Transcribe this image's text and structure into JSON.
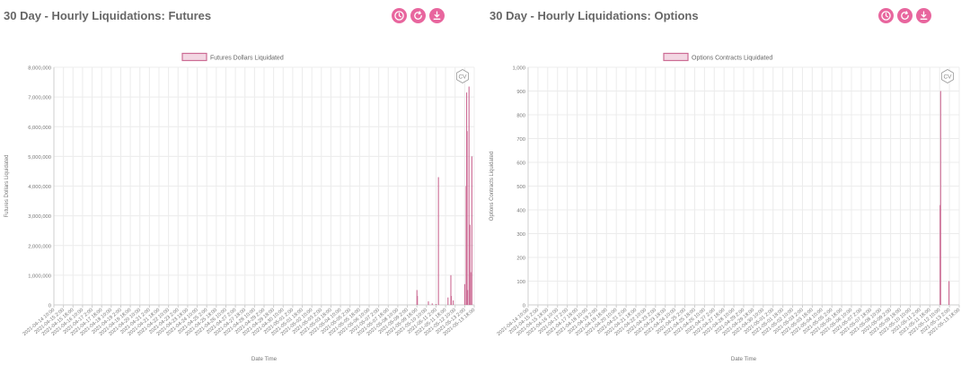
{
  "colors": {
    "accent": "#e8669e",
    "series_fill": "#f3d7e3",
    "series_line": "#cc6b94",
    "grid": "#ececec",
    "axis_text": "#777777",
    "title": "#666666"
  },
  "panels": [
    {
      "title": "30 Day - Hourly Liquidations: Futures",
      "buttons": [
        {
          "icon": "clock-icon"
        },
        {
          "icon": "refresh-icon"
        },
        {
          "icon": "download-icon"
        }
      ],
      "watermark": "CV"
    },
    {
      "title": "30 Day - Hourly Liquidations: Options",
      "buttons": [
        {
          "icon": "clock-icon"
        },
        {
          "icon": "refresh-icon"
        },
        {
          "icon": "download-icon"
        }
      ],
      "watermark": "CV"
    }
  ],
  "chart_data": [
    {
      "type": "bar",
      "title": "",
      "xlabel": "Date Time",
      "ylabel": "Futures Dollars Liquidated",
      "ylim": [
        0,
        8000000
      ],
      "yticks": [
        "0",
        "1,000,000",
        "2,000,000",
        "3,000,000",
        "4,000,000",
        "5,000,000",
        "6,000,000",
        "7,000,000",
        "8,000,000"
      ],
      "xticks": [
        "2021-04-14 10:00",
        "2021-04-15 2:00",
        "2021-04-15 18:00",
        "2021-04-16 10:00",
        "2021-04-17 2:00",
        "2021-04-17 18:00",
        "2021-04-18 10:00",
        "2021-04-19 2:00",
        "2021-04-19 18:00",
        "2021-04-20 10:00",
        "2021-04-21 2:00",
        "2021-04-21 18:00",
        "2021-04-22 10:00",
        "2021-04-23 2:00",
        "2021-04-23 18:00",
        "2021-04-24 10:00",
        "2021-04-25 2:00",
        "2021-04-25 18:00",
        "2021-04-26 10:00",
        "2021-04-27 2:00",
        "2021-04-27 18:00",
        "2021-04-28 10:00",
        "2021-04-29 2:00",
        "2021-04-29 18:00",
        "2021-04-30 10:00",
        "2021-05-01 2:00",
        "2021-05-01 18:00",
        "2021-05-02 10:00",
        "2021-05-03 2:00",
        "2021-05-03 18:00",
        "2021-05-04 10:00",
        "2021-05-05 2:00",
        "2021-05-05 18:00",
        "2021-05-06 10:00",
        "2021-05-07 2:00",
        "2021-05-07 18:00",
        "2021-05-08 10:00",
        "2021-05-09 2:00",
        "2021-05-09 18:00",
        "2021-05-10 10:00",
        "2021-05-11 2:00",
        "2021-05-11 18:00",
        "2021-05-12 10:00",
        "2021-05-13 2:00",
        "2021-05-13 18:00"
      ],
      "series": [
        {
          "name": "Futures Dollars Liquidated",
          "points": [
            {
              "x": 38.0,
              "y": 500000
            },
            {
              "x": 38.05,
              "y": 300000
            },
            {
              "x": 39.2,
              "y": 120000
            },
            {
              "x": 39.6,
              "y": 50000
            },
            {
              "x": 40.0,
              "y": 30000
            },
            {
              "x": 40.25,
              "y": 4300000
            },
            {
              "x": 41.25,
              "y": 250000
            },
            {
              "x": 41.55,
              "y": 1000000
            },
            {
              "x": 41.6,
              "y": 300000
            },
            {
              "x": 41.8,
              "y": 150000
            },
            {
              "x": 43.0,
              "y": 700000
            },
            {
              "x": 43.15,
              "y": 4000000
            },
            {
              "x": 43.2,
              "y": 7150000
            },
            {
              "x": 43.25,
              "y": 5850000
            },
            {
              "x": 43.3,
              "y": 500000
            },
            {
              "x": 43.45,
              "y": 7350000
            },
            {
              "x": 43.55,
              "y": 2700000
            },
            {
              "x": 43.62,
              "y": 1100000
            },
            {
              "x": 43.75,
              "y": 5000000
            },
            {
              "x": 44.3,
              "y": 50000
            },
            {
              "x": 44.6,
              "y": 120000
            }
          ]
        }
      ]
    },
    {
      "type": "bar",
      "title": "",
      "xlabel": "Date Time",
      "ylabel": "Options Contracts Liquidated",
      "ylim": [
        0,
        1000
      ],
      "yticks": [
        "0",
        "100",
        "200",
        "300",
        "400",
        "500",
        "600",
        "700",
        "800",
        "900",
        "1,000"
      ],
      "xticks": [
        "2021-04-14 10:00",
        "2021-04-15 2:00",
        "2021-04-15 18:00",
        "2021-04-16 10:00",
        "2021-04-17 2:00",
        "2021-04-17 18:00",
        "2021-04-18 10:00",
        "2021-04-19 2:00",
        "2021-04-19 18:00",
        "2021-04-20 10:00",
        "2021-04-21 2:00",
        "2021-04-21 18:00",
        "2021-04-22 10:00",
        "2021-04-23 2:00",
        "2021-04-23 18:00",
        "2021-04-24 10:00",
        "2021-04-25 2:00",
        "2021-04-25 18:00",
        "2021-04-26 10:00",
        "2021-04-27 2:00",
        "2021-04-27 18:00",
        "2021-04-28 10:00",
        "2021-04-29 2:00",
        "2021-04-29 18:00",
        "2021-04-30 10:00",
        "2021-05-01 2:00",
        "2021-05-01 18:00",
        "2021-05-02 10:00",
        "2021-05-03 2:00",
        "2021-05-03 18:00",
        "2021-05-04 10:00",
        "2021-05-05 2:00",
        "2021-05-05 18:00",
        "2021-05-06 10:00",
        "2021-05-07 2:00",
        "2021-05-07 18:00",
        "2021-05-08 10:00",
        "2021-05-09 2:00",
        "2021-05-09 18:00",
        "2021-05-10 10:00",
        "2021-05-11 2:00",
        "2021-05-11 18:00",
        "2021-05-12 10:00",
        "2021-05-13 2:00",
        "2021-05-13 18:00"
      ],
      "series": [
        {
          "name": "Options Contracts Liquidated",
          "points": [
            {
              "x": 42.05,
              "y": 420
            },
            {
              "x": 42.1,
              "y": 900
            },
            {
              "x": 42.95,
              "y": 100
            }
          ]
        }
      ]
    }
  ]
}
